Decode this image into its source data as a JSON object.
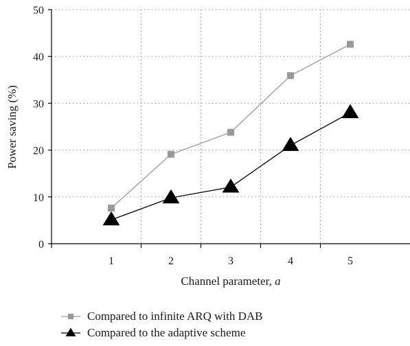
{
  "chart_data": {
    "type": "line",
    "xlabel": "Channel parameter, ",
    "xlabel_italic": "a",
    "ylabel": "Power saving (%)",
    "xlim": [
      0,
      6
    ],
    "ylim": [
      0,
      50
    ],
    "x_ticks": [
      1,
      2,
      3,
      4,
      5
    ],
    "y_ticks": [
      0,
      10,
      20,
      30,
      40,
      50
    ],
    "grid": "dotted",
    "legend_position": "bottom-left",
    "series": [
      {
        "name": "Compared to infinite ARQ with DAB",
        "marker": "square",
        "color": "#999999",
        "x": [
          1,
          2,
          3,
          4,
          5
        ],
        "values": [
          7.6,
          19.1,
          23.8,
          35.9,
          42.6
        ]
      },
      {
        "name": "Compared to the adaptive scheme",
        "marker": "triangle",
        "color": "#000000",
        "x": [
          1,
          2,
          3,
          4,
          5
        ],
        "values": [
          5.1,
          9.8,
          12.1,
          21.0,
          28.0
        ]
      }
    ]
  }
}
